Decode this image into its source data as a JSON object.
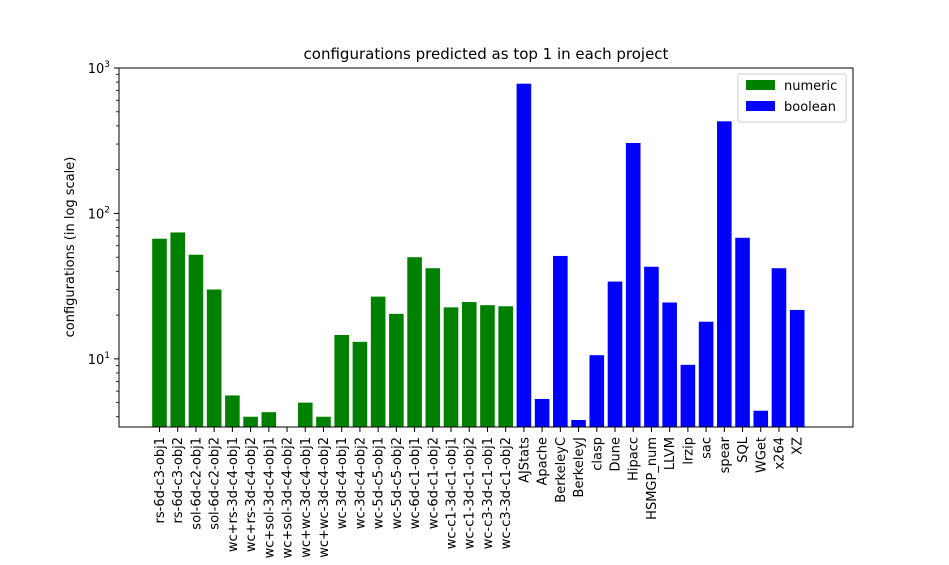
{
  "chart_data": {
    "type": "bar",
    "title": "configurations predicted as top 1 in each project",
    "xlabel": "",
    "ylabel": "configurations (in log scale)",
    "yscale": "log",
    "ylim": [
      3.4,
      1000
    ],
    "yticks": [
      {
        "value": 10,
        "base": "10",
        "exp": "1"
      },
      {
        "value": 100,
        "base": "10",
        "exp": "2"
      },
      {
        "value": 1000,
        "base": "10",
        "exp": "3"
      }
    ],
    "grid": false,
    "legend_position": "top-right",
    "categories": [
      "rs-6d-c3-obj1",
      "rs-6d-c3-obj2",
      "sol-6d-c2-obj1",
      "sol-6d-c2-obj2",
      "wc+rs-3d-c4-obj1",
      "wc+rs-3d-c4-obj2",
      "wc+sol-3d-c4-obj1",
      "wc+sol-3d-c4-obj2",
      "wc+wc-3d-c4-obj1",
      "wc+wc-3d-c4-obj2",
      "wc-3d-c4-obj1",
      "wc-3d-c4-obj2",
      "wc-5d-c5-obj1",
      "wc-5d-c5-obj2",
      "wc-6d-c1-obj1",
      "wc-6d-c1-obj2",
      "wc-c1-3d-c1-obj1",
      "wc-c1-3d-c1-obj2",
      "wc-c3-3d-c1-obj1",
      "wc-c3-3d-c1-obj2",
      "AJStats",
      "Apache",
      "BerkeleyC",
      "BerkeleyJ",
      "clasp",
      "Dune",
      "Hipacc",
      "HSMGP_num",
      "LLVM",
      "lrzip",
      "sac",
      "spear",
      "SQL",
      "WGet",
      "x264",
      "XZ"
    ],
    "series": [
      {
        "name": "numeric",
        "color": "#008000",
        "values": [
          67,
          74,
          52,
          30,
          5.6,
          4.0,
          4.3,
          null,
          5.0,
          4.0,
          14.6,
          13.1,
          26.8,
          20.4,
          50,
          42,
          22.6,
          24.6,
          23.4,
          23.0,
          null,
          null,
          null,
          null,
          null,
          null,
          null,
          null,
          null,
          null,
          null,
          null,
          null,
          null,
          null,
          null
        ]
      },
      {
        "name": "boolean",
        "color": "#0000ff",
        "values": [
          null,
          null,
          null,
          null,
          null,
          null,
          null,
          null,
          null,
          null,
          null,
          null,
          null,
          null,
          null,
          null,
          null,
          null,
          null,
          null,
          780,
          5.3,
          51,
          3.8,
          10.6,
          34,
          305,
          43,
          24.4,
          9.1,
          18,
          430,
          68,
          4.4,
          42,
          21.7
        ]
      }
    ]
  }
}
